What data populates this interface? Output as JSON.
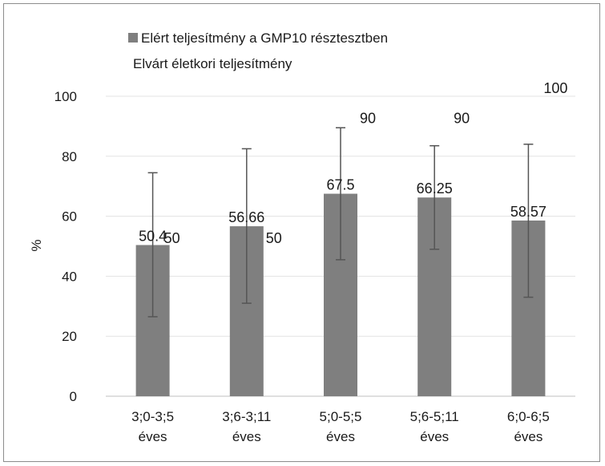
{
  "chart_data": {
    "type": "bar",
    "title": "",
    "xlabel": "",
    "ylabel": "%",
    "ylim": [
      0,
      100
    ],
    "yticks": [
      0,
      20,
      40,
      60,
      80,
      100
    ],
    "grid": true,
    "legend_position": "top",
    "categories": [
      [
        "3;0-3;5",
        "éves"
      ],
      [
        "3;6-3;11",
        "éves"
      ],
      [
        "5;0-5;5",
        "éves"
      ],
      [
        "5;6-5;11",
        "éves"
      ],
      [
        "6;0-6;5",
        "éves"
      ]
    ],
    "series": [
      {
        "name": "Elért teljesítmény a GMP10 résztesztben",
        "type": "bar",
        "color": "#7f7f7f",
        "values": [
          50.4,
          56.66,
          67.5,
          66.25,
          58.57
        ],
        "labels": [
          "50.4",
          "56.66",
          "67.5",
          "66.25",
          "58.57"
        ],
        "error_low": [
          26.5,
          31,
          45.5,
          49,
          33
        ],
        "error_high": [
          74.5,
          82.5,
          89.5,
          83.5,
          84
        ]
      },
      {
        "name": "Elvárt életkori teljesítmény",
        "type": "invisible",
        "values": [
          50,
          50,
          90,
          90,
          100
        ],
        "labels": [
          "50",
          "50",
          "90",
          "90",
          "100"
        ]
      }
    ]
  }
}
